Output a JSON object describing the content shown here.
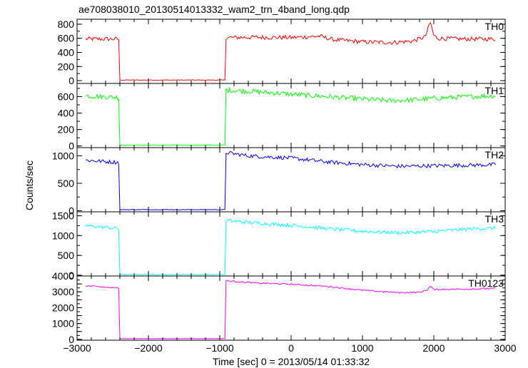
{
  "title": "ae708038010_20130514013332_wam2_trn_4band_long.qdp",
  "ylabel": "Counts/sec",
  "xlabel": "Time [sec] 0 = 2013/05/14 01:33:32",
  "chart_data": {
    "type": "line",
    "title": "ae708038010_20130514013332_wam2_trn_4band_long.qdp",
    "xlabel": "Time [sec] 0 = 2013/05/14 01:33:32",
    "ylabel": "Counts/sec",
    "xlim": [
      -3000,
      3000
    ],
    "x_ticks": [
      -3000,
      -2000,
      -1000,
      0,
      1000,
      2000,
      3000
    ],
    "x_tick_labels": [
      "−3000",
      "−2000",
      "−1000",
      "0",
      "1000",
      "2000",
      "3000"
    ],
    "panels": [
      {
        "name": "TH0",
        "color": "#ff0000",
        "ylim": [
          -40,
          870
        ],
        "yticks": [
          0,
          200,
          400,
          600,
          800
        ],
        "noise": 30,
        "points": [
          [
            -2880,
            590
          ],
          [
            -2420,
            590
          ],
          [
            -2410,
            585
          ],
          [
            -2405,
            8
          ],
          [
            -920,
            8
          ],
          [
            -912,
            610
          ],
          [
            -500,
            615
          ],
          [
            0,
            610
          ],
          [
            400,
            630
          ],
          [
            600,
            580
          ],
          [
            1000,
            550
          ],
          [
            1400,
            540
          ],
          [
            1700,
            560
          ],
          [
            1880,
            620
          ],
          [
            1950,
            830
          ],
          [
            2000,
            640
          ],
          [
            2050,
            600
          ],
          [
            2400,
            590
          ],
          [
            2870,
            590
          ]
        ]
      },
      {
        "name": "TH1",
        "color": "#00ff00",
        "ylim": [
          -20,
          760
        ],
        "yticks": [
          0,
          200,
          400,
          600
        ],
        "noise": 30,
        "points": [
          [
            -2880,
            610
          ],
          [
            -2420,
            590
          ],
          [
            -2410,
            580
          ],
          [
            -2405,
            10
          ],
          [
            -920,
            10
          ],
          [
            -912,
            680
          ],
          [
            -500,
            660
          ],
          [
            0,
            630
          ],
          [
            500,
            600
          ],
          [
            1000,
            570
          ],
          [
            1400,
            550
          ],
          [
            1700,
            560
          ],
          [
            2000,
            580
          ],
          [
            2500,
            600
          ],
          [
            2870,
            610
          ]
        ]
      },
      {
        "name": "TH2",
        "color": "#0000ff",
        "ylim": [
          -20,
          1150
        ],
        "yticks": [
          0,
          500,
          1000
        ],
        "noise": 35,
        "points": [
          [
            -2880,
            920
          ],
          [
            -2420,
            880
          ],
          [
            -2410,
            860
          ],
          [
            -2405,
            20
          ],
          [
            -920,
            20
          ],
          [
            -912,
            1060
          ],
          [
            -600,
            1000
          ],
          [
            0,
            960
          ],
          [
            500,
            890
          ],
          [
            1000,
            840
          ],
          [
            1500,
            810
          ],
          [
            2000,
            820
          ],
          [
            2500,
            830
          ],
          [
            2870,
            840
          ]
        ]
      },
      {
        "name": "TH3",
        "color": "#00ffff",
        "ylim": [
          -20,
          1600
        ],
        "yticks": [
          0,
          500,
          1000,
          1500
        ],
        "noise": 45,
        "points": [
          [
            -2880,
            1250
          ],
          [
            -2420,
            1180
          ],
          [
            -2410,
            1150
          ],
          [
            -2405,
            20
          ],
          [
            -920,
            20
          ],
          [
            -912,
            1380
          ],
          [
            -500,
            1320
          ],
          [
            0,
            1260
          ],
          [
            500,
            1180
          ],
          [
            1000,
            1110
          ],
          [
            1500,
            1070
          ],
          [
            2000,
            1100
          ],
          [
            2500,
            1170
          ],
          [
            2870,
            1190
          ]
        ]
      },
      {
        "name": "TH0123",
        "color": "#ff00ff",
        "ylim": [
          -50,
          4000
        ],
        "yticks": [
          0,
          500,
          1000,
          1500,
          2000,
          2500,
          3000,
          3500
        ],
        "ytick_labels": [
          "0",
          "",
          "1000",
          "",
          "2000",
          "",
          "3000",
          ""
        ],
        "noise": 45,
        "points": [
          [
            -2880,
            3380
          ],
          [
            -2420,
            3230
          ],
          [
            -2410,
            3200
          ],
          [
            -2405,
            50
          ],
          [
            -920,
            50
          ],
          [
            -912,
            3700
          ],
          [
            -500,
            3560
          ],
          [
            0,
            3480
          ],
          [
            500,
            3350
          ],
          [
            1000,
            3100
          ],
          [
            1500,
            2950
          ],
          [
            1800,
            2970
          ],
          [
            1900,
            3100
          ],
          [
            1950,
            3350
          ],
          [
            2000,
            3150
          ],
          [
            2500,
            3180
          ],
          [
            2870,
            3220
          ]
        ]
      }
    ],
    "top_panel_extra_label": "4000"
  }
}
